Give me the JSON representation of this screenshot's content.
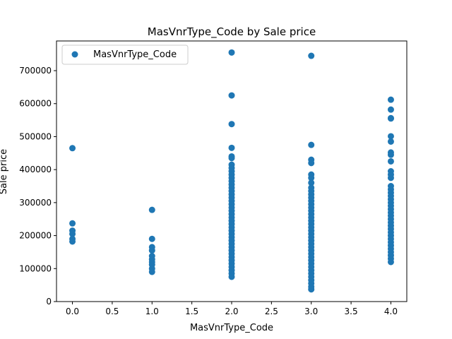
{
  "chart_data": {
    "type": "scatter",
    "title": "MasVnrType_Code by Sale price",
    "xlabel": "MasVnrType_Code",
    "ylabel": "Sale price",
    "xlim": [
      -0.2,
      4.2
    ],
    "ylim": [
      0,
      790000
    ],
    "xticks": [
      0.0,
      0.5,
      1.0,
      1.5,
      2.0,
      2.5,
      3.0,
      3.5,
      4.0
    ],
    "xtick_labels": [
      "0.0",
      "0.5",
      "1.0",
      "1.5",
      "2.0",
      "2.5",
      "3.0",
      "3.5",
      "4.0"
    ],
    "yticks": [
      0,
      100000,
      200000,
      300000,
      400000,
      500000,
      600000,
      700000
    ],
    "ytick_labels": [
      "0",
      "100000",
      "200000",
      "300000",
      "400000",
      "500000",
      "600000",
      "700000"
    ],
    "grid": false,
    "legend_position": "top-left",
    "series": [
      {
        "name": "MasVnrType_Code",
        "color": "#1f77b4",
        "points": [
          {
            "x": 0,
            "y": 465000
          },
          {
            "x": 0,
            "y": 237000
          },
          {
            "x": 0,
            "y": 215000
          },
          {
            "x": 0,
            "y": 205000
          },
          {
            "x": 0,
            "y": 190000
          },
          {
            "x": 0,
            "y": 182000
          },
          {
            "x": 1,
            "y": 278000
          },
          {
            "x": 1,
            "y": 190000
          },
          {
            "x": 1,
            "y": 165000
          },
          {
            "x": 1,
            "y": 155000
          },
          {
            "x": 1,
            "y": 138000
          },
          {
            "x": 1,
            "y": 128000
          },
          {
            "x": 1,
            "y": 120000
          },
          {
            "x": 1,
            "y": 112000
          },
          {
            "x": 1,
            "y": 100000
          },
          {
            "x": 1,
            "y": 90000
          },
          {
            "x": 2,
            "y": 755000
          },
          {
            "x": 2,
            "y": 625000
          },
          {
            "x": 2,
            "y": 538000
          },
          {
            "x": 2,
            "y": 466000
          },
          {
            "x": 2,
            "y": 440000
          },
          {
            "x": 2,
            "y": 435000
          },
          {
            "x": 2,
            "y": 415000
          },
          {
            "x": 2,
            "y": 405000
          },
          {
            "x": 2,
            "y": 395000
          },
          {
            "x": 2,
            "y": 385000
          },
          {
            "x": 2,
            "y": 375000
          },
          {
            "x": 2,
            "y": 365000
          },
          {
            "x": 2,
            "y": 355000
          },
          {
            "x": 2,
            "y": 345000
          },
          {
            "x": 2,
            "y": 335000
          },
          {
            "x": 2,
            "y": 325000
          },
          {
            "x": 2,
            "y": 315000
          },
          {
            "x": 2,
            "y": 305000
          },
          {
            "x": 2,
            "y": 295000
          },
          {
            "x": 2,
            "y": 285000
          },
          {
            "x": 2,
            "y": 275000
          },
          {
            "x": 2,
            "y": 265000
          },
          {
            "x": 2,
            "y": 255000
          },
          {
            "x": 2,
            "y": 245000
          },
          {
            "x": 2,
            "y": 235000
          },
          {
            "x": 2,
            "y": 225000
          },
          {
            "x": 2,
            "y": 215000
          },
          {
            "x": 2,
            "y": 205000
          },
          {
            "x": 2,
            "y": 195000
          },
          {
            "x": 2,
            "y": 185000
          },
          {
            "x": 2,
            "y": 175000
          },
          {
            "x": 2,
            "y": 165000
          },
          {
            "x": 2,
            "y": 155000
          },
          {
            "x": 2,
            "y": 145000
          },
          {
            "x": 2,
            "y": 135000
          },
          {
            "x": 2,
            "y": 125000
          },
          {
            "x": 2,
            "y": 115000
          },
          {
            "x": 2,
            "y": 105000
          },
          {
            "x": 2,
            "y": 95000
          },
          {
            "x": 2,
            "y": 85000
          },
          {
            "x": 2,
            "y": 75000
          },
          {
            "x": 3,
            "y": 745000
          },
          {
            "x": 3,
            "y": 475000
          },
          {
            "x": 3,
            "y": 430000
          },
          {
            "x": 3,
            "y": 420000
          },
          {
            "x": 3,
            "y": 385000
          },
          {
            "x": 3,
            "y": 375000
          },
          {
            "x": 3,
            "y": 360000
          },
          {
            "x": 3,
            "y": 345000
          },
          {
            "x": 3,
            "y": 335000
          },
          {
            "x": 3,
            "y": 325000
          },
          {
            "x": 3,
            "y": 315000
          },
          {
            "x": 3,
            "y": 305000
          },
          {
            "x": 3,
            "y": 295000
          },
          {
            "x": 3,
            "y": 285000
          },
          {
            "x": 3,
            "y": 275000
          },
          {
            "x": 3,
            "y": 265000
          },
          {
            "x": 3,
            "y": 255000
          },
          {
            "x": 3,
            "y": 245000
          },
          {
            "x": 3,
            "y": 235000
          },
          {
            "x": 3,
            "y": 225000
          },
          {
            "x": 3,
            "y": 215000
          },
          {
            "x": 3,
            "y": 205000
          },
          {
            "x": 3,
            "y": 195000
          },
          {
            "x": 3,
            "y": 185000
          },
          {
            "x": 3,
            "y": 175000
          },
          {
            "x": 3,
            "y": 165000
          },
          {
            "x": 3,
            "y": 155000
          },
          {
            "x": 3,
            "y": 145000
          },
          {
            "x": 3,
            "y": 135000
          },
          {
            "x": 3,
            "y": 125000
          },
          {
            "x": 3,
            "y": 115000
          },
          {
            "x": 3,
            "y": 105000
          },
          {
            "x": 3,
            "y": 95000
          },
          {
            "x": 3,
            "y": 85000
          },
          {
            "x": 3,
            "y": 75000
          },
          {
            "x": 3,
            "y": 65000
          },
          {
            "x": 3,
            "y": 55000
          },
          {
            "x": 3,
            "y": 45000
          },
          {
            "x": 3,
            "y": 37000
          },
          {
            "x": 4,
            "y": 612000
          },
          {
            "x": 4,
            "y": 582000
          },
          {
            "x": 4,
            "y": 556000
          },
          {
            "x": 4,
            "y": 555000
          },
          {
            "x": 4,
            "y": 501000
          },
          {
            "x": 4,
            "y": 485000
          },
          {
            "x": 4,
            "y": 452000
          },
          {
            "x": 4,
            "y": 445000
          },
          {
            "x": 4,
            "y": 425000
          },
          {
            "x": 4,
            "y": 395000
          },
          {
            "x": 4,
            "y": 385000
          },
          {
            "x": 4,
            "y": 375000
          },
          {
            "x": 4,
            "y": 350000
          },
          {
            "x": 4,
            "y": 340000
          },
          {
            "x": 4,
            "y": 330000
          },
          {
            "x": 4,
            "y": 320000
          },
          {
            "x": 4,
            "y": 310000
          },
          {
            "x": 4,
            "y": 300000
          },
          {
            "x": 4,
            "y": 290000
          },
          {
            "x": 4,
            "y": 280000
          },
          {
            "x": 4,
            "y": 270000
          },
          {
            "x": 4,
            "y": 260000
          },
          {
            "x": 4,
            "y": 250000
          },
          {
            "x": 4,
            "y": 240000
          },
          {
            "x": 4,
            "y": 230000
          },
          {
            "x": 4,
            "y": 220000
          },
          {
            "x": 4,
            "y": 210000
          },
          {
            "x": 4,
            "y": 200000
          },
          {
            "x": 4,
            "y": 190000
          },
          {
            "x": 4,
            "y": 180000
          },
          {
            "x": 4,
            "y": 170000
          },
          {
            "x": 4,
            "y": 160000
          },
          {
            "x": 4,
            "y": 150000
          },
          {
            "x": 4,
            "y": 140000
          },
          {
            "x": 4,
            "y": 130000
          },
          {
            "x": 4,
            "y": 120000
          }
        ]
      }
    ]
  }
}
